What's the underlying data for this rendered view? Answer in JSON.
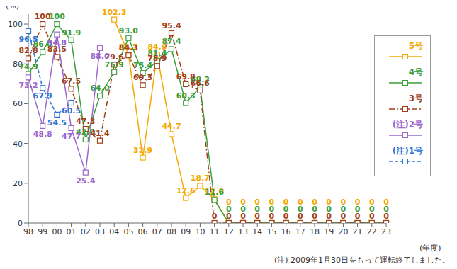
{
  "chart_data": {
    "type": "line",
    "y_label": "(%)",
    "x_label": "(年度)",
    "note": "(注) 2009年1月30日をもって運転終了しました。",
    "categories": [
      "98",
      "99",
      "00",
      "01",
      "02",
      "03",
      "04",
      "05",
      "06",
      "07",
      "08",
      "09",
      "10",
      "11",
      "12",
      "13",
      "14",
      "15",
      "16",
      "17",
      "18",
      "19",
      "20",
      "21",
      "22",
      "23"
    ],
    "ylim": [
      0,
      105
    ],
    "yticks": [
      0,
      20,
      40,
      60,
      80,
      100
    ],
    "grid": false,
    "legend": "right",
    "data_labels": true,
    "marker": "square",
    "series": [
      {
        "name": "5号",
        "color": "#f5a800",
        "line_style": "solid",
        "values": [
          null,
          null,
          null,
          null,
          null,
          null,
          102.3,
          84.7,
          32.9,
          84.6,
          44.7,
          12.6,
          18.7,
          12.0,
          0,
          0,
          0,
          0,
          0,
          0,
          0,
          0,
          0,
          0,
          0,
          0
        ],
        "value_labels": [
          null,
          null,
          null,
          null,
          null,
          null,
          "102.3",
          "84.7",
          "32.9",
          "84.6",
          "44.7",
          "12.6",
          "18.7",
          "12.0",
          "0",
          "0",
          "0",
          "0",
          "0",
          "0",
          "0",
          "0",
          "0",
          "0",
          "0",
          "0"
        ]
      },
      {
        "name": "4号",
        "color": "#3a9e3a",
        "line_style": "solid",
        "values": [
          74.9,
          86.0,
          100,
          91.9,
          42.0,
          64.0,
          75.9,
          93.0,
          75.4,
          81.4,
          87.4,
          60.3,
          68.3,
          11.6,
          0,
          0,
          0,
          0,
          0,
          0,
          0,
          0,
          0,
          0,
          0,
          0
        ],
        "value_labels": [
          "74.9",
          "86.0",
          "100",
          "91.9",
          "42.0",
          "64.0",
          "75.9",
          "93.0",
          "75.4",
          "81.4",
          "87.4",
          "60.3",
          "68.3",
          "11.6",
          "0",
          "0",
          "0",
          "0",
          "0",
          "0",
          "0",
          "0",
          "0",
          "0",
          "0",
          "0"
        ]
      },
      {
        "name": "3号",
        "color": "#a0401a",
        "line_style": "dashdot",
        "values": [
          82.8,
          100,
          83.5,
          67.5,
          47.3,
          41.4,
          79.6,
          84.3,
          69.3,
          78.9,
          95.4,
          69.8,
          66.6,
          0,
          0,
          0,
          0,
          0,
          0,
          0,
          0,
          0,
          0,
          0,
          0,
          0
        ]
      },
      {
        "name": "(注)2号",
        "color": "#9966cc",
        "line_style": "solid",
        "values": [
          73.2,
          48.8,
          94.8,
          47.7,
          25.4,
          88.0,
          null,
          null,
          null,
          null,
          null,
          null,
          null,
          null,
          null,
          null,
          null,
          null,
          null,
          null,
          null,
          null,
          null,
          null,
          null,
          null
        ],
        "value_labels": [
          "73.2",
          "48.8",
          "94.8",
          "47.7",
          "25.4",
          "88.0",
          null,
          null,
          null,
          null,
          null,
          null,
          null,
          null,
          null,
          null,
          null,
          null,
          null,
          null,
          null,
          null,
          null,
          null,
          null,
          null
        ]
      },
      {
        "name": "(注)1号",
        "color": "#2e75d6",
        "line_style": "dashed",
        "values": [
          96.5,
          67.9,
          54.5,
          60.5,
          null,
          null,
          null,
          null,
          null,
          null,
          null,
          null,
          null,
          null,
          null,
          null,
          null,
          null,
          null,
          null,
          null,
          null,
          null,
          null,
          null,
          null
        ]
      }
    ]
  }
}
